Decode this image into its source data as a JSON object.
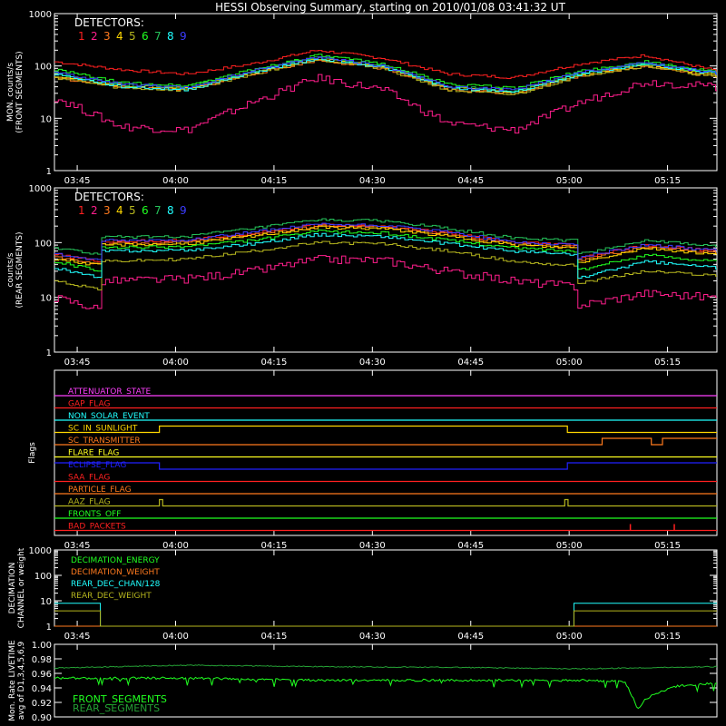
{
  "title": "HESSI Observing Summary, starting on 2010/01/08 03:41:32 UT",
  "time_ticks": [
    "03:45",
    "04:00",
    "04:15",
    "04:30",
    "04:45",
    "05:00",
    "05:15"
  ],
  "time_ticks_minutes": [
    3.47,
    18.47,
    33.47,
    48.47,
    63.47,
    78.47,
    93.47
  ],
  "time_range_minutes": [
    0,
    101
  ],
  "detectors_label": "DETECTORS:",
  "detectors": [
    {
      "label": "1",
      "color": "#ff2020"
    },
    {
      "label": "2",
      "color": "#ff1e8c"
    },
    {
      "label": "3",
      "color": "#ff7a1e"
    },
    {
      "label": "4",
      "color": "#ffd700"
    },
    {
      "label": "5",
      "color": "#b6b61e"
    },
    {
      "label": "6",
      "color": "#20ff20"
    },
    {
      "label": "7",
      "color": "#25c25a"
    },
    {
      "label": "8",
      "color": "#20ffff"
    },
    {
      "label": "9",
      "color": "#3c3cff"
    }
  ],
  "chart_data": [
    {
      "id": "front",
      "type": "line",
      "step": true,
      "scale": "log",
      "ylabel": [
        "MON. counts/s",
        "(FRONT SEGMENTS)"
      ],
      "ylim": [
        1,
        1000
      ],
      "ytick_labels": [
        "1",
        "10",
        "100",
        "1000"
      ],
      "ytick_values": [
        1,
        10,
        100,
        1000
      ],
      "x": [
        0,
        10,
        20,
        30,
        40,
        50,
        60,
        70,
        80,
        90,
        101
      ],
      "series": [
        {
          "name": "1",
          "color": "#ff2020",
          "values": [
            120,
            85,
            70,
            110,
            200,
            140,
            70,
            60,
            110,
            160,
            80
          ]
        },
        {
          "name": "2",
          "color": "#ff1e8c",
          "values": [
            25,
            7,
            6,
            20,
            60,
            35,
            8,
            6,
            20,
            50,
            40
          ]
        },
        {
          "name": "3",
          "color": "#ff7a1e",
          "values": [
            60,
            40,
            35,
            70,
            130,
            90,
            35,
            30,
            65,
            100,
            60
          ]
        },
        {
          "name": "4",
          "color": "#ffd700",
          "values": [
            65,
            42,
            38,
            75,
            140,
            95,
            38,
            32,
            70,
            105,
            65
          ]
        },
        {
          "name": "5",
          "color": "#b6b61e",
          "values": [
            60,
            38,
            34,
            70,
            135,
            90,
            34,
            28,
            65,
            100,
            60
          ]
        },
        {
          "name": "6",
          "color": "#20ff20",
          "values": [
            85,
            48,
            42,
            85,
            160,
            110,
            45,
            38,
            80,
            120,
            75
          ]
        },
        {
          "name": "7",
          "color": "#25c25a",
          "values": [
            72,
            44,
            38,
            78,
            150,
            100,
            40,
            34,
            72,
            110,
            70
          ]
        },
        {
          "name": "8",
          "color": "#20ffff",
          "values": [
            70,
            40,
            35,
            75,
            140,
            95,
            38,
            32,
            70,
            110,
            70
          ]
        },
        {
          "name": "9",
          "color": "#3c3cff",
          "values": [
            75,
            45,
            38,
            80,
            150,
            100,
            40,
            35,
            75,
            115,
            72
          ]
        }
      ]
    },
    {
      "id": "rear",
      "type": "line",
      "step": true,
      "scale": "log",
      "ylabel": [
        "counts/s",
        "(REAR SEGMENTS)"
      ],
      "ylim": [
        1,
        1000
      ],
      "ytick_labels": [
        "1",
        "10",
        "100",
        "1000"
      ],
      "ytick_values": [
        1,
        10,
        100,
        1000
      ],
      "x": [
        0,
        7,
        7.1,
        20,
        30,
        40,
        50,
        60,
        70,
        79.2,
        79.3,
        90,
        101
      ],
      "series": [
        {
          "name": "1",
          "color": "#ff2020",
          "values": [
            60,
            45,
            105,
            110,
            150,
            210,
            200,
            150,
            100,
            90,
            50,
            90,
            70
          ]
        },
        {
          "name": "2",
          "color": "#ff1e8c",
          "values": [
            10,
            6,
            20,
            22,
            30,
            50,
            48,
            30,
            20,
            16,
            7,
            12,
            10
          ]
        },
        {
          "name": "3",
          "color": "#ff7a1e",
          "values": [
            55,
            40,
            95,
            100,
            140,
            200,
            190,
            140,
            95,
            85,
            45,
            85,
            65
          ]
        },
        {
          "name": "4",
          "color": "#ffd700",
          "values": [
            50,
            38,
            90,
            95,
            130,
            190,
            180,
            130,
            90,
            80,
            42,
            80,
            60
          ]
        },
        {
          "name": "5",
          "color": "#b6b61e",
          "values": [
            20,
            14,
            45,
            50,
            70,
            100,
            95,
            70,
            45,
            38,
            18,
            30,
            25
          ]
        },
        {
          "name": "6",
          "color": "#20ff20",
          "values": [
            45,
            30,
            80,
            85,
            110,
            160,
            150,
            110,
            80,
            70,
            30,
            60,
            45
          ]
        },
        {
          "name": "7",
          "color": "#25c25a",
          "values": [
            80,
            60,
            125,
            130,
            180,
            260,
            250,
            180,
            120,
            110,
            60,
            110,
            85
          ]
        },
        {
          "name": "8",
          "color": "#20ffff",
          "values": [
            35,
            22,
            70,
            72,
            95,
            140,
            130,
            95,
            70,
            60,
            22,
            45,
            35
          ]
        },
        {
          "name": "9",
          "color": "#3c3cff",
          "values": [
            62,
            46,
            108,
            112,
            155,
            215,
            205,
            155,
            102,
            92,
            52,
            92,
            72
          ]
        }
      ]
    },
    {
      "id": "flags",
      "type": "step-flags",
      "ylabel": [
        "Flags"
      ],
      "flags": [
        {
          "label": "ATTENUATOR_STATE",
          "color": "#ff40ff",
          "segments": [
            [
              0,
              101,
              0
            ]
          ]
        },
        {
          "label": "GAP_FLAG",
          "color": "#ff2020",
          "segments": [
            [
              0,
              101,
              0
            ]
          ]
        },
        {
          "label": "NON_SOLAR_EVENT",
          "color": "#20ffff",
          "segments": [
            [
              0,
              101,
              0
            ]
          ]
        },
        {
          "label": "SC_IN_SUNLIGHT",
          "color": "#ffd700",
          "segments": [
            [
              0,
              16,
              0
            ],
            [
              16,
              78.2,
              1
            ],
            [
              78.2,
              101,
              0
            ]
          ]
        },
        {
          "label": "SC_TRANSMITTER",
          "color": "#ff7a1e",
          "segments": [
            [
              0,
              83.5,
              0
            ],
            [
              83.5,
              91,
              1
            ],
            [
              91,
              92.7,
              0
            ],
            [
              92.7,
              101,
              1
            ]
          ]
        },
        {
          "label": "FLARE_FLAG",
          "color": "#ffff20",
          "segments": [
            [
              0,
              101,
              0
            ]
          ]
        },
        {
          "label": "ECLIPSE_FLAG",
          "color": "#2020ff",
          "segments": [
            [
              0,
              16,
              1
            ],
            [
              16,
              78.2,
              0
            ],
            [
              78.2,
              101,
              1
            ]
          ]
        },
        {
          "label": "SAA_FLAG",
          "color": "#ff2020",
          "segments": [
            [
              0,
              101,
              0
            ]
          ]
        },
        {
          "label": "PARTICLE_FLAG",
          "color": "#ff7a1e",
          "segments": [
            [
              0,
              101,
              0
            ]
          ]
        },
        {
          "label": "AAZ_FLAG",
          "color": "#b6b61e",
          "segments": [
            [
              0,
              16,
              0
            ],
            [
              16,
              16.5,
              1
            ],
            [
              16.5,
              77.8,
              0
            ],
            [
              77.8,
              78.3,
              1
            ],
            [
              78.3,
              101,
              0
            ]
          ]
        },
        {
          "label": "FRONTS_OFF",
          "color": "#20ff20",
          "segments": [
            [
              0,
              101,
              0
            ]
          ]
        },
        {
          "label": "BAD_PACKETS",
          "color": "#ff2020",
          "segments": [
            [
              0,
              101,
              0
            ]
          ],
          "spikes": [
            87.8,
            94.5
          ]
        }
      ]
    },
    {
      "id": "decimation",
      "type": "line",
      "step": true,
      "scale": "log",
      "ylabel": [
        "DECIMATION",
        "CHANNEL or weight"
      ],
      "ylim": [
        1,
        1000
      ],
      "ytick_labels": [
        "1",
        "10",
        "100",
        "1000"
      ],
      "ytick_values": [
        1,
        10,
        100,
        1000
      ],
      "legend": [
        {
          "label": "DECIMATION_ENERGY",
          "color": "#20ff20"
        },
        {
          "label": "DECIMATION_WEIGHT",
          "color": "#ff7a1e"
        },
        {
          "label": "REAR_DEC_CHAN/128",
          "color": "#20ffff"
        },
        {
          "label": "REAR_DEC_WEIGHT",
          "color": "#b6b61e"
        }
      ],
      "series": [
        {
          "name": "DECIMATION_ENERGY",
          "color": "#20ff20",
          "x": [
            0,
            101
          ],
          "values": [
            1,
            1
          ]
        },
        {
          "name": "DECIMATION_WEIGHT",
          "color": "#ff7a1e",
          "x": [
            0,
            101
          ],
          "values": [
            1,
            1
          ]
        },
        {
          "name": "REAR_DEC_CHAN/128",
          "color": "#20ffff",
          "x": [
            0,
            7,
            7,
            79.2,
            79.2,
            101
          ],
          "values": [
            8,
            8,
            1,
            1,
            8,
            8
          ]
        },
        {
          "name": "REAR_DEC_WEIGHT",
          "color": "#b6b61e",
          "x": [
            0,
            7,
            7,
            79.2,
            79.2,
            101
          ],
          "values": [
            4,
            4,
            1,
            1,
            4,
            4
          ]
        }
      ]
    },
    {
      "id": "livetime",
      "type": "line",
      "scale": "linear",
      "ylabel": [
        "Mon. Rate LIVETIME",
        "avg of D1,3,4,5,6,9"
      ],
      "ylim": [
        0.9,
        1.0
      ],
      "ytick_labels": [
        "0.90",
        "0.92",
        "0.94",
        "0.96",
        "0.98",
        "1.00"
      ],
      "ytick_values": [
        0.9,
        0.92,
        0.94,
        0.96,
        0.98,
        1.0
      ],
      "legend": [
        {
          "label": "FRONT_SEGMENTS",
          "color": "#20ff20"
        },
        {
          "label": "REAR_SEGMENTS",
          "color": "#25a035"
        }
      ],
      "series": [
        {
          "name": "FRONT_SEGMENTS",
          "color": "#20ff20",
          "x": [
            0,
            20,
            40,
            60,
            80,
            87,
            89,
            90,
            92,
            95,
            101
          ],
          "values": [
            0.955,
            0.955,
            0.952,
            0.952,
            0.952,
            0.95,
            0.912,
            0.925,
            0.935,
            0.944,
            0.948
          ]
        },
        {
          "name": "REAR_SEGMENTS",
          "color": "#25a035",
          "x": [
            0,
            20,
            40,
            60,
            80,
            101
          ],
          "values": [
            0.968,
            0.972,
            0.97,
            0.969,
            0.967,
            0.97
          ]
        }
      ]
    }
  ]
}
